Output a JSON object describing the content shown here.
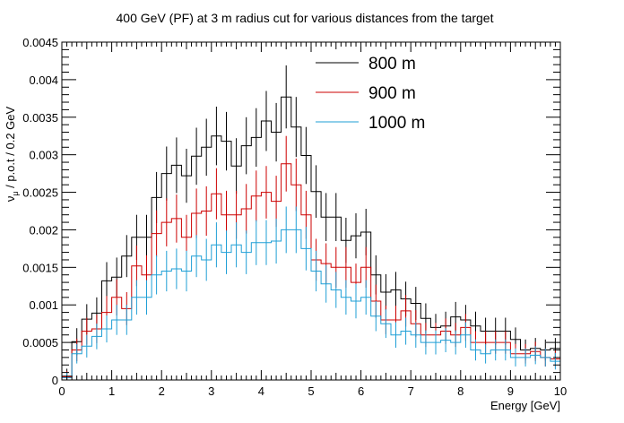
{
  "chart_data": {
    "type": "line",
    "title": "400 GeV (PF) at 3 m radius cut for various distances from the target",
    "xlabel": "Energy [GeV]",
    "ylabel_parts": {
      "nu": "ν",
      "mu_sub": "μ",
      "rest": " / p.o.t / 0.2 GeV"
    },
    "xlim": [
      0,
      10
    ],
    "ylim": [
      0,
      0.0045
    ],
    "x_ticks": [
      0,
      1,
      2,
      3,
      4,
      5,
      6,
      7,
      8,
      9,
      10
    ],
    "x_tick_labels": [
      "0",
      "1",
      "2",
      "3",
      "4",
      "5",
      "6",
      "7",
      "8",
      "9",
      "10"
    ],
    "y_ticks": [
      0,
      0.0005,
      0.001,
      0.0015,
      0.002,
      0.0025,
      0.003,
      0.0035,
      0.004,
      0.0045
    ],
    "y_tick_labels": [
      "0",
      "0.0005",
      "0.001",
      "0.0015",
      "0.002",
      "0.0025",
      "0.003",
      "0.0035",
      "0.004",
      "0.0045"
    ],
    "grid": false,
    "legend_position": "top-right",
    "bin_width": 0.2,
    "bin_low_edges": [
      0,
      0.2,
      0.4,
      0.6,
      0.8,
      1.0,
      1.2,
      1.4,
      1.6,
      1.8,
      2.0,
      2.2,
      2.4,
      2.6,
      2.8,
      3.0,
      3.2,
      3.4,
      3.6,
      3.8,
      4.0,
      4.2,
      4.4,
      4.6,
      4.8,
      5.0,
      5.2,
      5.4,
      5.6,
      5.8,
      6.0,
      6.2,
      6.4,
      6.6,
      6.8,
      7.0,
      7.2,
      7.4,
      7.6,
      7.8,
      8.0,
      8.2,
      8.4,
      8.6,
      8.8,
      9.0,
      9.2,
      9.4,
      9.6,
      9.8
    ],
    "series": [
      {
        "name": "800 m",
        "color": "#000000",
        "values": [
          5e-05,
          0.00051,
          0.00081,
          0.00089,
          0.00132,
          0.00137,
          0.00165,
          0.0019,
          0.0019,
          0.00243,
          0.00275,
          0.00286,
          0.00272,
          0.00298,
          0.0031,
          0.00325,
          0.00318,
          0.00285,
          0.00312,
          0.00323,
          0.00345,
          0.0033,
          0.00377,
          0.00337,
          0.00299,
          0.00251,
          0.00217,
          0.00217,
          0.00186,
          0.00192,
          0.00197,
          0.0014,
          0.00117,
          0.0012,
          0.00108,
          0.00102,
          0.00082,
          0.0007,
          0.00072,
          0.00084,
          0.0008,
          0.00072,
          0.00065,
          0.00065,
          0.00065,
          0.00054,
          0.0004,
          0.00042,
          0.0004,
          0.00042
        ],
        "errors": [
          0.0001,
          0.00018,
          0.0002,
          0.00021,
          0.00025,
          0.00026,
          0.00028,
          0.0003,
          0.0003,
          0.00034,
          0.00036,
          0.00037,
          0.00036,
          0.00038,
          0.00038,
          0.00039,
          0.00039,
          0.00037,
          0.00038,
          0.00039,
          0.0004,
          0.00039,
          0.00042,
          0.0004,
          0.00038,
          0.00035,
          0.00032,
          0.00032,
          0.0003,
          0.0003,
          0.00031,
          0.00026,
          0.00024,
          0.00024,
          0.00023,
          0.00022,
          0.0002,
          0.00018,
          0.00019,
          0.0002,
          0.0002,
          0.00019,
          0.00018,
          0.00018,
          0.00018,
          0.00016,
          0.00014,
          0.00014,
          0.00014,
          0.00014
        ]
      },
      {
        "name": "900 m",
        "color": "#cc0000",
        "values": [
          4e-05,
          0.0004,
          0.00065,
          0.00068,
          0.0009,
          0.0011,
          0.00095,
          0.00152,
          0.0014,
          0.00195,
          0.0021,
          0.00215,
          0.0019,
          0.00222,
          0.00225,
          0.00248,
          0.0022,
          0.0022,
          0.00228,
          0.00245,
          0.0025,
          0.00238,
          0.00288,
          0.0026,
          0.0022,
          0.0016,
          0.00155,
          0.0015,
          0.0015,
          0.0013,
          0.0015,
          0.00105,
          0.0008,
          0.0008,
          0.00092,
          0.00075,
          0.0006,
          0.0006,
          0.00065,
          0.0006,
          0.0007,
          0.0005,
          0.0005,
          0.0005,
          0.0005,
          0.00035,
          0.00035,
          0.00038,
          0.0003,
          0.00028
        ],
        "errors": [
          8e-05,
          0.00015,
          0.00018,
          0.00019,
          0.00022,
          0.00024,
          0.00022,
          0.00027,
          0.00026,
          0.00031,
          0.00032,
          0.00032,
          0.0003,
          0.00033,
          0.00033,
          0.00034,
          0.00032,
          0.00032,
          0.00033,
          0.00034,
          0.00035,
          0.00034,
          0.00037,
          0.00035,
          0.00032,
          0.00028,
          0.00027,
          0.00027,
          0.00027,
          0.00025,
          0.00027,
          0.00022,
          0.00019,
          0.00019,
          0.00021,
          0.00018,
          0.00016,
          0.00016,
          0.00017,
          0.00016,
          0.00018,
          0.00015,
          0.00015,
          0.00015,
          0.00015,
          0.00013,
          0.00013,
          0.00013,
          0.00012,
          0.00011
        ]
      },
      {
        "name": "1000 m",
        "color": "#1f9fd6",
        "values": [
          3e-05,
          0.00035,
          0.00045,
          0.00058,
          0.00068,
          0.0008,
          0.0008,
          0.0011,
          0.0011,
          0.0014,
          0.00145,
          0.00148,
          0.00145,
          0.00165,
          0.0016,
          0.0018,
          0.0017,
          0.0018,
          0.0017,
          0.00183,
          0.00183,
          0.00185,
          0.002,
          0.002,
          0.00175,
          0.00145,
          0.00128,
          0.0012,
          0.0011,
          0.00105,
          0.0011,
          0.00085,
          0.00075,
          0.0006,
          0.00065,
          0.0006,
          0.0005,
          0.0005,
          0.00053,
          0.0005,
          0.0006,
          0.0004,
          0.00035,
          0.0004,
          0.0004,
          0.0003,
          0.0003,
          0.00033,
          0.0003,
          0.00025
        ],
        "errors": [
          7e-05,
          0.00013,
          0.00015,
          0.00017,
          0.00018,
          0.0002,
          0.0002,
          0.00023,
          0.00023,
          0.00026,
          0.00027,
          0.00027,
          0.00027,
          0.00028,
          0.00028,
          0.0003,
          0.00029,
          0.0003,
          0.00029,
          0.0003,
          0.0003,
          0.0003,
          0.00031,
          0.00031,
          0.00029,
          0.00027,
          0.00025,
          0.00024,
          0.00023,
          0.00023,
          0.00023,
          0.0002,
          0.00019,
          0.00017,
          0.00018,
          0.00017,
          0.00016,
          0.00016,
          0.00016,
          0.00016,
          0.00017,
          0.00014,
          0.00013,
          0.00014,
          0.00014,
          0.00012,
          0.00012,
          0.00012,
          0.00012,
          0.00011
        ]
      }
    ]
  }
}
